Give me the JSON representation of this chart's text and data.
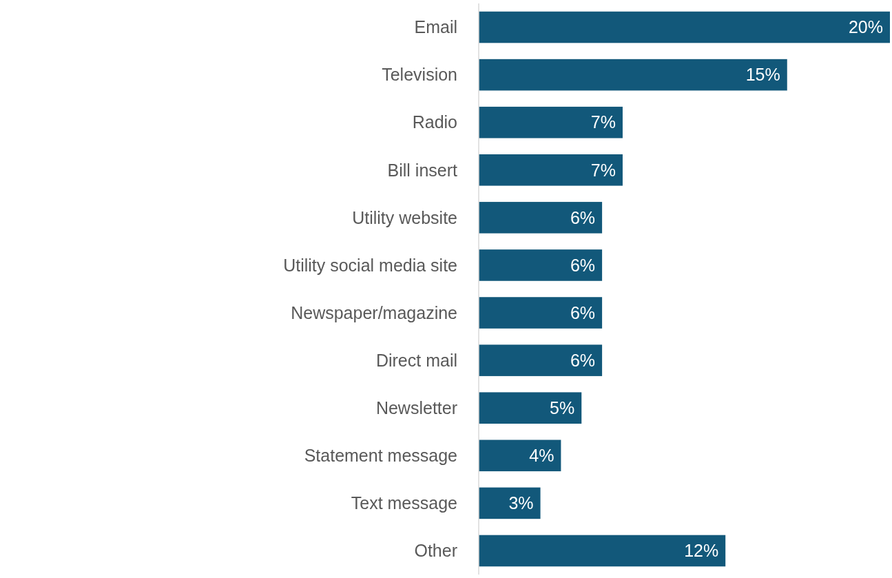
{
  "chart_data": {
    "type": "bar",
    "orientation": "horizontal",
    "categories": [
      "Email",
      "Television",
      "Radio",
      "Bill insert",
      "Utility website",
      "Utility social media site",
      "Newspaper/magazine",
      "Direct mail",
      "Newsletter",
      "Statement message",
      "Text message",
      "Other"
    ],
    "values": [
      20,
      15,
      7,
      7,
      6,
      6,
      6,
      6,
      5,
      4,
      3,
      12
    ],
    "value_labels": [
      "20%",
      "15%",
      "7%",
      "7%",
      "6%",
      "6%",
      "6%",
      "6%",
      "5%",
      "4%",
      "3%",
      "12%"
    ],
    "color": "#12587a"
  }
}
